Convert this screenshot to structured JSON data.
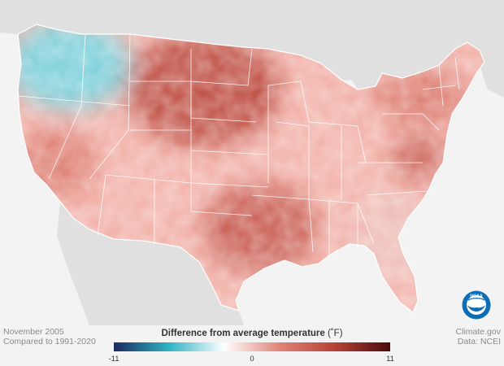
{
  "map": {
    "type": "choropleth",
    "region": "Contiguous United States",
    "variable": "Difference from average temperature",
    "unit": "°F",
    "scale_min": -11,
    "scale_max": 11,
    "colors": {
      "min": "#1a2a5e",
      "cool": "#2fb3c4",
      "neutral": "#ffffff",
      "warm": "#e08478",
      "hot": "#b54236",
      "max": "#4b0b0b",
      "land_outside": "#e0e0e0",
      "water": "#f3f3f3"
    },
    "anomaly_regions": [
      {
        "area": "Pacific Northwest (WA, northern OR, northern ID)",
        "level": "below average",
        "approx_value": -4
      },
      {
        "area": "Northern Great Plains (MT, WY, ND, SD)",
        "level": "well above average",
        "approx_value": 7
      },
      {
        "area": "South Central (TX, OK, AR, LA)",
        "level": "well above average",
        "approx_value": 6
      },
      {
        "area": "Mid-Atlantic (MD, DE, VA)",
        "level": "well above average",
        "approx_value": 6
      },
      {
        "area": "Northeast and Great Lakes",
        "level": "above average",
        "approx_value": 4
      },
      {
        "area": "California and Nevada",
        "level": "above average",
        "approx_value": 4
      },
      {
        "area": "Southeast and Florida",
        "level": "slightly above average",
        "approx_value": 2
      }
    ]
  },
  "legend": {
    "title": "Difference from average temperature",
    "unit_text": "(˚F)",
    "tick_min": "-11",
    "tick_mid": "0",
    "tick_max": "11"
  },
  "footer": {
    "period": "November 2005",
    "baseline": "Compared to 1991-2020",
    "source_site": "Climate.gov",
    "data_source": "Data: NCEI"
  },
  "logo": {
    "text": "NOAA",
    "colors": {
      "outer": "#0d6cb6",
      "inner": "#ffffff",
      "bird": "#0d6cb6"
    }
  }
}
